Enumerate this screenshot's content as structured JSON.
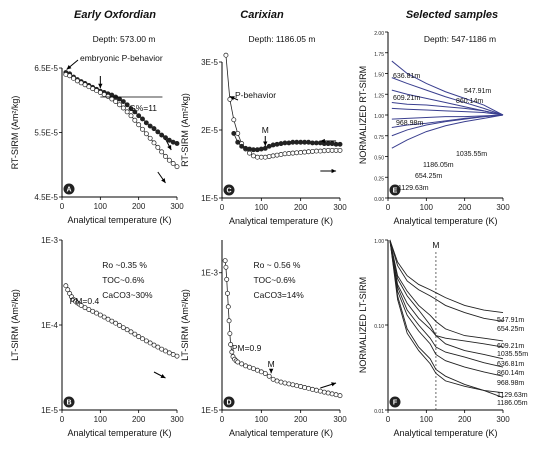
{
  "chart_data": [
    {
      "id": "A",
      "type": "scatter",
      "title": "Early Oxfordian",
      "subtitle": "Depth: 573.00 m",
      "xlabel": "Analytical temperature (K)",
      "ylabel": "RT-SIRM (Am²/kg)",
      "xlim": [
        0,
        300
      ],
      "ylim": [
        4.5e-05,
        6.5e-05
      ],
      "xticks": [
        "0",
        "100",
        "200",
        "300"
      ],
      "yticks": [
        {
          "v": 4.5e-05,
          "t": "4.5E-5"
        },
        {
          "v": 5.5e-05,
          "t": "5.5E-5"
        },
        {
          "v": 6.5e-05,
          "t": "6.5E-5"
        }
      ],
      "series": [
        {
          "marker": "filled",
          "x": [
            10,
            20,
            30,
            40,
            50,
            60,
            70,
            80,
            90,
            100,
            110,
            120,
            130,
            140,
            150,
            160,
            170,
            180,
            190,
            200,
            210,
            220,
            230,
            240,
            250,
            260,
            270,
            280,
            290,
            300
          ],
          "y": [
            6.43e-05,
            6.41e-05,
            6.36e-05,
            6.32e-05,
            6.29e-05,
            6.26e-05,
            6.23e-05,
            6.2e-05,
            6.17e-05,
            6.14e-05,
            6.12e-05,
            6.1e-05,
            6.08e-05,
            6.05e-05,
            6.02e-05,
            5.98e-05,
            5.93e-05,
            5.87e-05,
            5.82e-05,
            5.76e-05,
            5.71e-05,
            5.65e-05,
            5.6e-05,
            5.56e-05,
            5.51e-05,
            5.46e-05,
            5.42e-05,
            5.38e-05,
            5.35e-05,
            5.33e-05
          ]
        },
        {
          "marker": "open",
          "x": [
            10,
            20,
            30,
            40,
            50,
            60,
            70,
            80,
            90,
            100,
            110,
            120,
            130,
            140,
            150,
            160,
            170,
            180,
            190,
            200,
            210,
            220,
            230,
            240,
            250,
            260,
            270,
            280,
            290,
            300
          ],
          "y": [
            6.4e-05,
            6.38e-05,
            6.34e-05,
            6.3e-05,
            6.27e-05,
            6.24e-05,
            6.21e-05,
            6.18e-05,
            6.15e-05,
            6.12e-05,
            6.09e-05,
            6.06e-05,
            6.02e-05,
            5.98e-05,
            5.93e-05,
            5.88e-05,
            5.82e-05,
            5.76e-05,
            5.69e-05,
            5.62e-05,
            5.55e-05,
            5.48e-05,
            5.41e-05,
            5.34e-05,
            5.27e-05,
            5.2e-05,
            5.13e-05,
            5.07e-05,
            5.02e-05,
            4.97e-05
          ]
        }
      ],
      "annotations": [
        "embryonic P-behavior",
        "G%=11"
      ],
      "label": "A"
    },
    {
      "id": "C",
      "type": "scatter",
      "title": "Carixian",
      "subtitle": "Depth: 1186.05 m",
      "xlabel": "Analytical temperature (K)",
      "ylabel": "RT-SIRM (Am²/kg)",
      "xlim": [
        0,
        300
      ],
      "ylim": [
        1e-05,
        3e-05
      ],
      "xticks": [
        "0",
        "100",
        "200",
        "300"
      ],
      "yticks": [
        {
          "v": 1e-05,
          "t": "1E-5"
        },
        {
          "v": 2e-05,
          "t": "2E-5"
        },
        {
          "v": 3e-05,
          "t": "3E-5"
        }
      ],
      "series": [
        {
          "marker": "open",
          "x": [
            10,
            20,
            30,
            40,
            50,
            60,
            70,
            80,
            90,
            100,
            110,
            120,
            130,
            140,
            150,
            160,
            170,
            180,
            190,
            200,
            210,
            220,
            230,
            240,
            250,
            260,
            270,
            280,
            290,
            300
          ],
          "y": [
            3.1e-05,
            2.45e-05,
            2.15e-05,
            1.95e-05,
            1.8e-05,
            1.72e-05,
            1.66e-05,
            1.62e-05,
            1.6e-05,
            1.6e-05,
            1.6e-05,
            1.61e-05,
            1.62e-05,
            1.63e-05,
            1.64e-05,
            1.65e-05,
            1.655e-05,
            1.66e-05,
            1.665e-05,
            1.67e-05,
            1.675e-05,
            1.68e-05,
            1.685e-05,
            1.69e-05,
            1.69e-05,
            1.695e-05,
            1.7e-05,
            1.7e-05,
            1.7e-05,
            1.7e-05
          ]
        },
        {
          "marker": "filled",
          "x": [
            30,
            40,
            50,
            60,
            70,
            80,
            90,
            100,
            110,
            120,
            130,
            140,
            150,
            160,
            170,
            180,
            190,
            200,
            210,
            220,
            230,
            240,
            250,
            260,
            270,
            280,
            290,
            300
          ],
          "y": [
            1.95e-05,
            1.82e-05,
            1.76e-05,
            1.73e-05,
            1.72e-05,
            1.71e-05,
            1.71e-05,
            1.72e-05,
            1.73e-05,
            1.76e-05,
            1.78e-05,
            1.79e-05,
            1.8e-05,
            1.81e-05,
            1.81e-05,
            1.82e-05,
            1.82e-05,
            1.82e-05,
            1.82e-05,
            1.82e-05,
            1.81e-05,
            1.81e-05,
            1.81e-05,
            1.8e-05,
            1.8e-05,
            1.8e-05,
            1.79e-05,
            1.79e-05
          ]
        }
      ],
      "annotations": [
        "P-behavior",
        "M"
      ],
      "label": "C"
    },
    {
      "id": "E",
      "type": "line",
      "title": "Selected samples",
      "subtitle": "Depth: 547-1186 m",
      "xlabel": "Analytical temperature (K)",
      "ylabel": "NORMALIZED RT-SIRM",
      "xlim": [
        0,
        300
      ],
      "ylim": [
        0,
        2
      ],
      "xticks": [
        "0",
        "100",
        "200",
        "300"
      ],
      "yticks": [
        {
          "v": 0,
          "t": "0.00"
        },
        {
          "v": 0.25,
          "t": "0.25"
        },
        {
          "v": 0.5,
          "t": "0.50"
        },
        {
          "v": 0.75,
          "t": "0.75"
        },
        {
          "v": 1.0,
          "t": "1.00"
        },
        {
          "v": 1.25,
          "t": "1.25"
        },
        {
          "v": 1.5,
          "t": "1.50"
        },
        {
          "v": 1.75,
          "t": "1.75"
        },
        {
          "v": 2.0,
          "t": "2.00"
        }
      ],
      "x": [
        10,
        50,
        100,
        150,
        200,
        250,
        300
      ],
      "series": [
        {
          "name": "636.81m",
          "values": [
            1.65,
            1.5,
            1.38,
            1.28,
            1.2,
            1.12,
            1.0
          ]
        },
        {
          "name": "609.21m",
          "values": [
            1.45,
            1.38,
            1.3,
            1.22,
            1.15,
            1.08,
            1.0
          ]
        },
        {
          "name": "968.98m",
          "values": [
            1.3,
            1.25,
            1.2,
            1.15,
            1.1,
            1.05,
            1.0
          ]
        },
        {
          "name": "860.14m",
          "values": [
            1.15,
            1.13,
            1.12,
            1.1,
            1.08,
            1.05,
            1.0
          ]
        },
        {
          "name": "547.91m",
          "values": [
            1.08,
            1.07,
            1.06,
            1.05,
            1.04,
            1.03,
            1.0
          ]
        },
        {
          "name": "1035.55m",
          "values": [
            0.95,
            0.96,
            0.97,
            0.98,
            0.98,
            0.99,
            1.0
          ]
        },
        {
          "name": "1186.05m",
          "values": [
            0.75,
            0.82,
            0.88,
            0.92,
            0.95,
            0.98,
            1.0
          ]
        },
        {
          "name": "654.25m",
          "values": [
            0.85,
            0.88,
            0.9,
            0.93,
            0.96,
            0.98,
            1.0
          ]
        },
        {
          "name": "1129.63m",
          "values": [
            0.6,
            0.7,
            0.8,
            0.87,
            0.92,
            0.96,
            1.0
          ]
        }
      ],
      "label": "E"
    },
    {
      "id": "B",
      "type": "scatter",
      "xlabel": "Analytical temperature (K)",
      "ylabel": "LT-SIRM (Am²/kg)",
      "xlim": [
        0,
        300
      ],
      "yscale": "log",
      "ylim": [
        1e-05,
        0.001
      ],
      "xticks": [
        "0",
        "100",
        "200",
        "300"
      ],
      "yticks": [
        {
          "v": 1e-05,
          "t": "1E-5"
        },
        {
          "v": 0.0001,
          "t": "1E-4"
        },
        {
          "v": 0.001,
          "t": "1E-3"
        }
      ],
      "series": [
        {
          "marker": "open",
          "x": [
            10,
            15,
            20,
            25,
            30,
            35,
            40,
            45,
            50,
            60,
            70,
            80,
            90,
            100,
            110,
            120,
            130,
            140,
            150,
            160,
            170,
            180,
            190,
            200,
            210,
            220,
            230,
            240,
            250,
            260,
            270,
            280,
            290,
            300
          ],
          "y": [
            0.00029,
            0.00026,
            0.000235,
            0.000215,
            0.0002,
            0.00019,
            0.000182,
            0.000176,
            0.00017,
            0.00016,
            0.000152,
            0.000145,
            0.000138,
            0.000131,
            0.000124,
            0.000117,
            0.000111,
            0.000105,
            9.9e-05,
            9.3e-05,
            8.8e-05,
            8.3e-05,
            7.8e-05,
            7.3e-05,
            6.9e-05,
            6.5e-05,
            6.15e-05,
            5.8e-05,
            5.5e-05,
            5.2e-05,
            4.95e-05,
            4.7e-05,
            4.5e-05,
            4.3e-05
          ]
        }
      ],
      "annotations": [
        "PM=0.4",
        "Ro ~0.35 %",
        "TOC~0.6%",
        "CaCO3~30%"
      ],
      "label": "B"
    },
    {
      "id": "D",
      "type": "scatter",
      "xlabel": "Analytical temperature (K)",
      "ylabel": "LT-SIRM (Am²/kg)",
      "xlim": [
        0,
        300
      ],
      "yscale": "log",
      "ylim": [
        1e-05,
        0.003
      ],
      "xticks": [
        "0",
        "100",
        "200",
        "300"
      ],
      "yticks": [
        {
          "v": 1e-05,
          "t": "1E-5"
        },
        {
          "v": 0.001,
          "t": "1E-3"
        }
      ],
      "series": [
        {
          "marker": "open",
          "x": [
            8,
            10,
            12,
            14,
            16,
            18,
            20,
            22,
            25,
            28,
            32,
            36,
            40,
            50,
            60,
            70,
            80,
            90,
            100,
            110,
            120,
            130,
            140,
            150,
            160,
            170,
            180,
            190,
            200,
            210,
            220,
            230,
            240,
            250,
            260,
            270,
            280,
            290,
            300
          ],
          "y": [
            0.0015,
            0.0012,
            0.0008,
            0.0005,
            0.00032,
            0.0002,
            0.00013,
            9e-05,
            7e-05,
            6e-05,
            5.5e-05,
            5.2e-05,
            5e-05,
            4.7e-05,
            4.4e-05,
            4.2e-05,
            4e-05,
            3.8e-05,
            3.6e-05,
            3.4e-05,
            3.1e-05,
            2.8e-05,
            2.65e-05,
            2.55e-05,
            2.47e-05,
            2.4e-05,
            2.33e-05,
            2.26e-05,
            2.2e-05,
            2.13e-05,
            2.07e-05,
            2e-05,
            1.94e-05,
            1.88e-05,
            1.82e-05,
            1.77e-05,
            1.72e-05,
            1.67e-05,
            1.62e-05
          ]
        }
      ],
      "annotations": [
        "Ro ~ 0.56 %",
        "TOC~0.6%",
        "CaCO3=14%",
        "PM=0.9",
        "M"
      ],
      "label": "D"
    },
    {
      "id": "F",
      "type": "line",
      "xlabel": "Analytical temperature (K)",
      "ylabel": "NORMALIZED LT-SIRM",
      "xlim": [
        0,
        300
      ],
      "yscale": "log",
      "ylim": [
        0.01,
        1.0
      ],
      "xticks": [
        "0",
        "100",
        "200",
        "300"
      ],
      "yticks": [
        {
          "v": 0.01,
          "t": "0.01"
        },
        {
          "v": 0.1,
          "t": "0.10"
        },
        {
          "v": 1.0,
          "t": "1.00"
        }
      ],
      "vline": 125,
      "x": [
        5,
        25,
        50,
        80,
        110,
        125,
        150,
        200,
        250,
        300
      ],
      "series": [
        {
          "name": "547.91m",
          "values": [
            1.0,
            0.55,
            0.38,
            0.3,
            0.26,
            0.24,
            0.21,
            0.17,
            0.15,
            0.14
          ]
        },
        {
          "name": "654.25m",
          "values": [
            1.0,
            0.5,
            0.33,
            0.26,
            0.22,
            0.2,
            0.17,
            0.14,
            0.12,
            0.11
          ]
        },
        {
          "name": "609.21m",
          "values": [
            1.0,
            0.38,
            0.25,
            0.17,
            0.13,
            0.11,
            0.09,
            0.075,
            0.07,
            0.065
          ]
        },
        {
          "name": "1035.55m",
          "values": [
            1.0,
            0.3,
            0.18,
            0.12,
            0.09,
            0.075,
            0.07,
            0.065,
            0.06,
            0.055
          ]
        },
        {
          "name": "636.81m",
          "values": [
            1.0,
            0.35,
            0.22,
            0.15,
            0.1,
            0.075,
            0.06,
            0.05,
            0.045,
            0.04
          ]
        },
        {
          "name": "860.14m",
          "values": [
            1.0,
            0.28,
            0.15,
            0.1,
            0.07,
            0.055,
            0.048,
            0.042,
            0.036,
            0.032
          ]
        },
        {
          "name": "968.98m",
          "values": [
            1.0,
            0.25,
            0.13,
            0.085,
            0.06,
            0.045,
            0.038,
            0.032,
            0.028,
            0.025
          ]
        },
        {
          "name": "1129.63m",
          "values": [
            1.0,
            0.2,
            0.08,
            0.05,
            0.035,
            0.027,
            0.022,
            0.019,
            0.017,
            0.016
          ]
        },
        {
          "name": "1186.05m",
          "values": [
            1.0,
            0.22,
            0.09,
            0.055,
            0.04,
            0.03,
            0.025,
            0.02,
            0.017,
            0.014
          ]
        }
      ],
      "annotations": [
        "M"
      ],
      "label": "F"
    }
  ]
}
